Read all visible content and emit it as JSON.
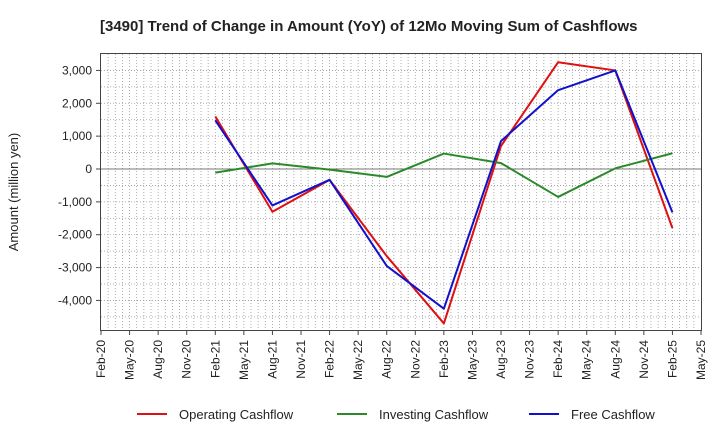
{
  "chart_data": {
    "type": "line",
    "title": "[3490]  Trend of Change in Amount (YoY) of 12Mo Moving Sum of Cashflows",
    "xlabel": "",
    "ylabel": "Amount (million yen)",
    "ylim": [
      -4900,
      3500
    ],
    "yticks": [
      3000,
      2000,
      1000,
      0,
      -1000,
      -2000,
      -3000,
      -4000
    ],
    "ytick_labels": [
      "3,000",
      "2,000",
      "1,000",
      "0",
      "-1,000",
      "-2,000",
      "-3,000",
      "-4,000"
    ],
    "categories": [
      "Feb-20",
      "May-20",
      "Aug-20",
      "Nov-20",
      "Feb-21",
      "May-21",
      "Aug-21",
      "Nov-21",
      "Feb-22",
      "May-22",
      "Aug-22",
      "Nov-22",
      "Feb-23",
      "May-23",
      "Aug-23",
      "Nov-23",
      "Feb-24",
      "May-24",
      "Aug-24",
      "Nov-24",
      "Feb-25",
      "May-25"
    ],
    "grid": true,
    "legend_position": "bottom",
    "series": [
      {
        "name": "Operating Cashflow",
        "color": "#dd1111",
        "values": [
          null,
          null,
          null,
          null,
          1600,
          null,
          -1300,
          null,
          -330,
          null,
          -2650,
          null,
          -4700,
          null,
          700,
          null,
          3250,
          null,
          3000,
          null,
          -1800,
          null
        ]
      },
      {
        "name": "Investing Cashflow",
        "color": "#2a8a2a",
        "values": [
          null,
          null,
          null,
          null,
          -110,
          null,
          170,
          null,
          -20,
          null,
          -240,
          null,
          470,
          null,
          180,
          null,
          -850,
          null,
          20,
          null,
          480,
          null
        ]
      },
      {
        "name": "Free Cashflow",
        "color": "#1111cc",
        "values": [
          null,
          null,
          null,
          null,
          1480,
          null,
          -1110,
          null,
          -330,
          null,
          -2950,
          null,
          -4250,
          null,
          850,
          null,
          2400,
          null,
          3000,
          null,
          -1320,
          null
        ]
      }
    ]
  }
}
